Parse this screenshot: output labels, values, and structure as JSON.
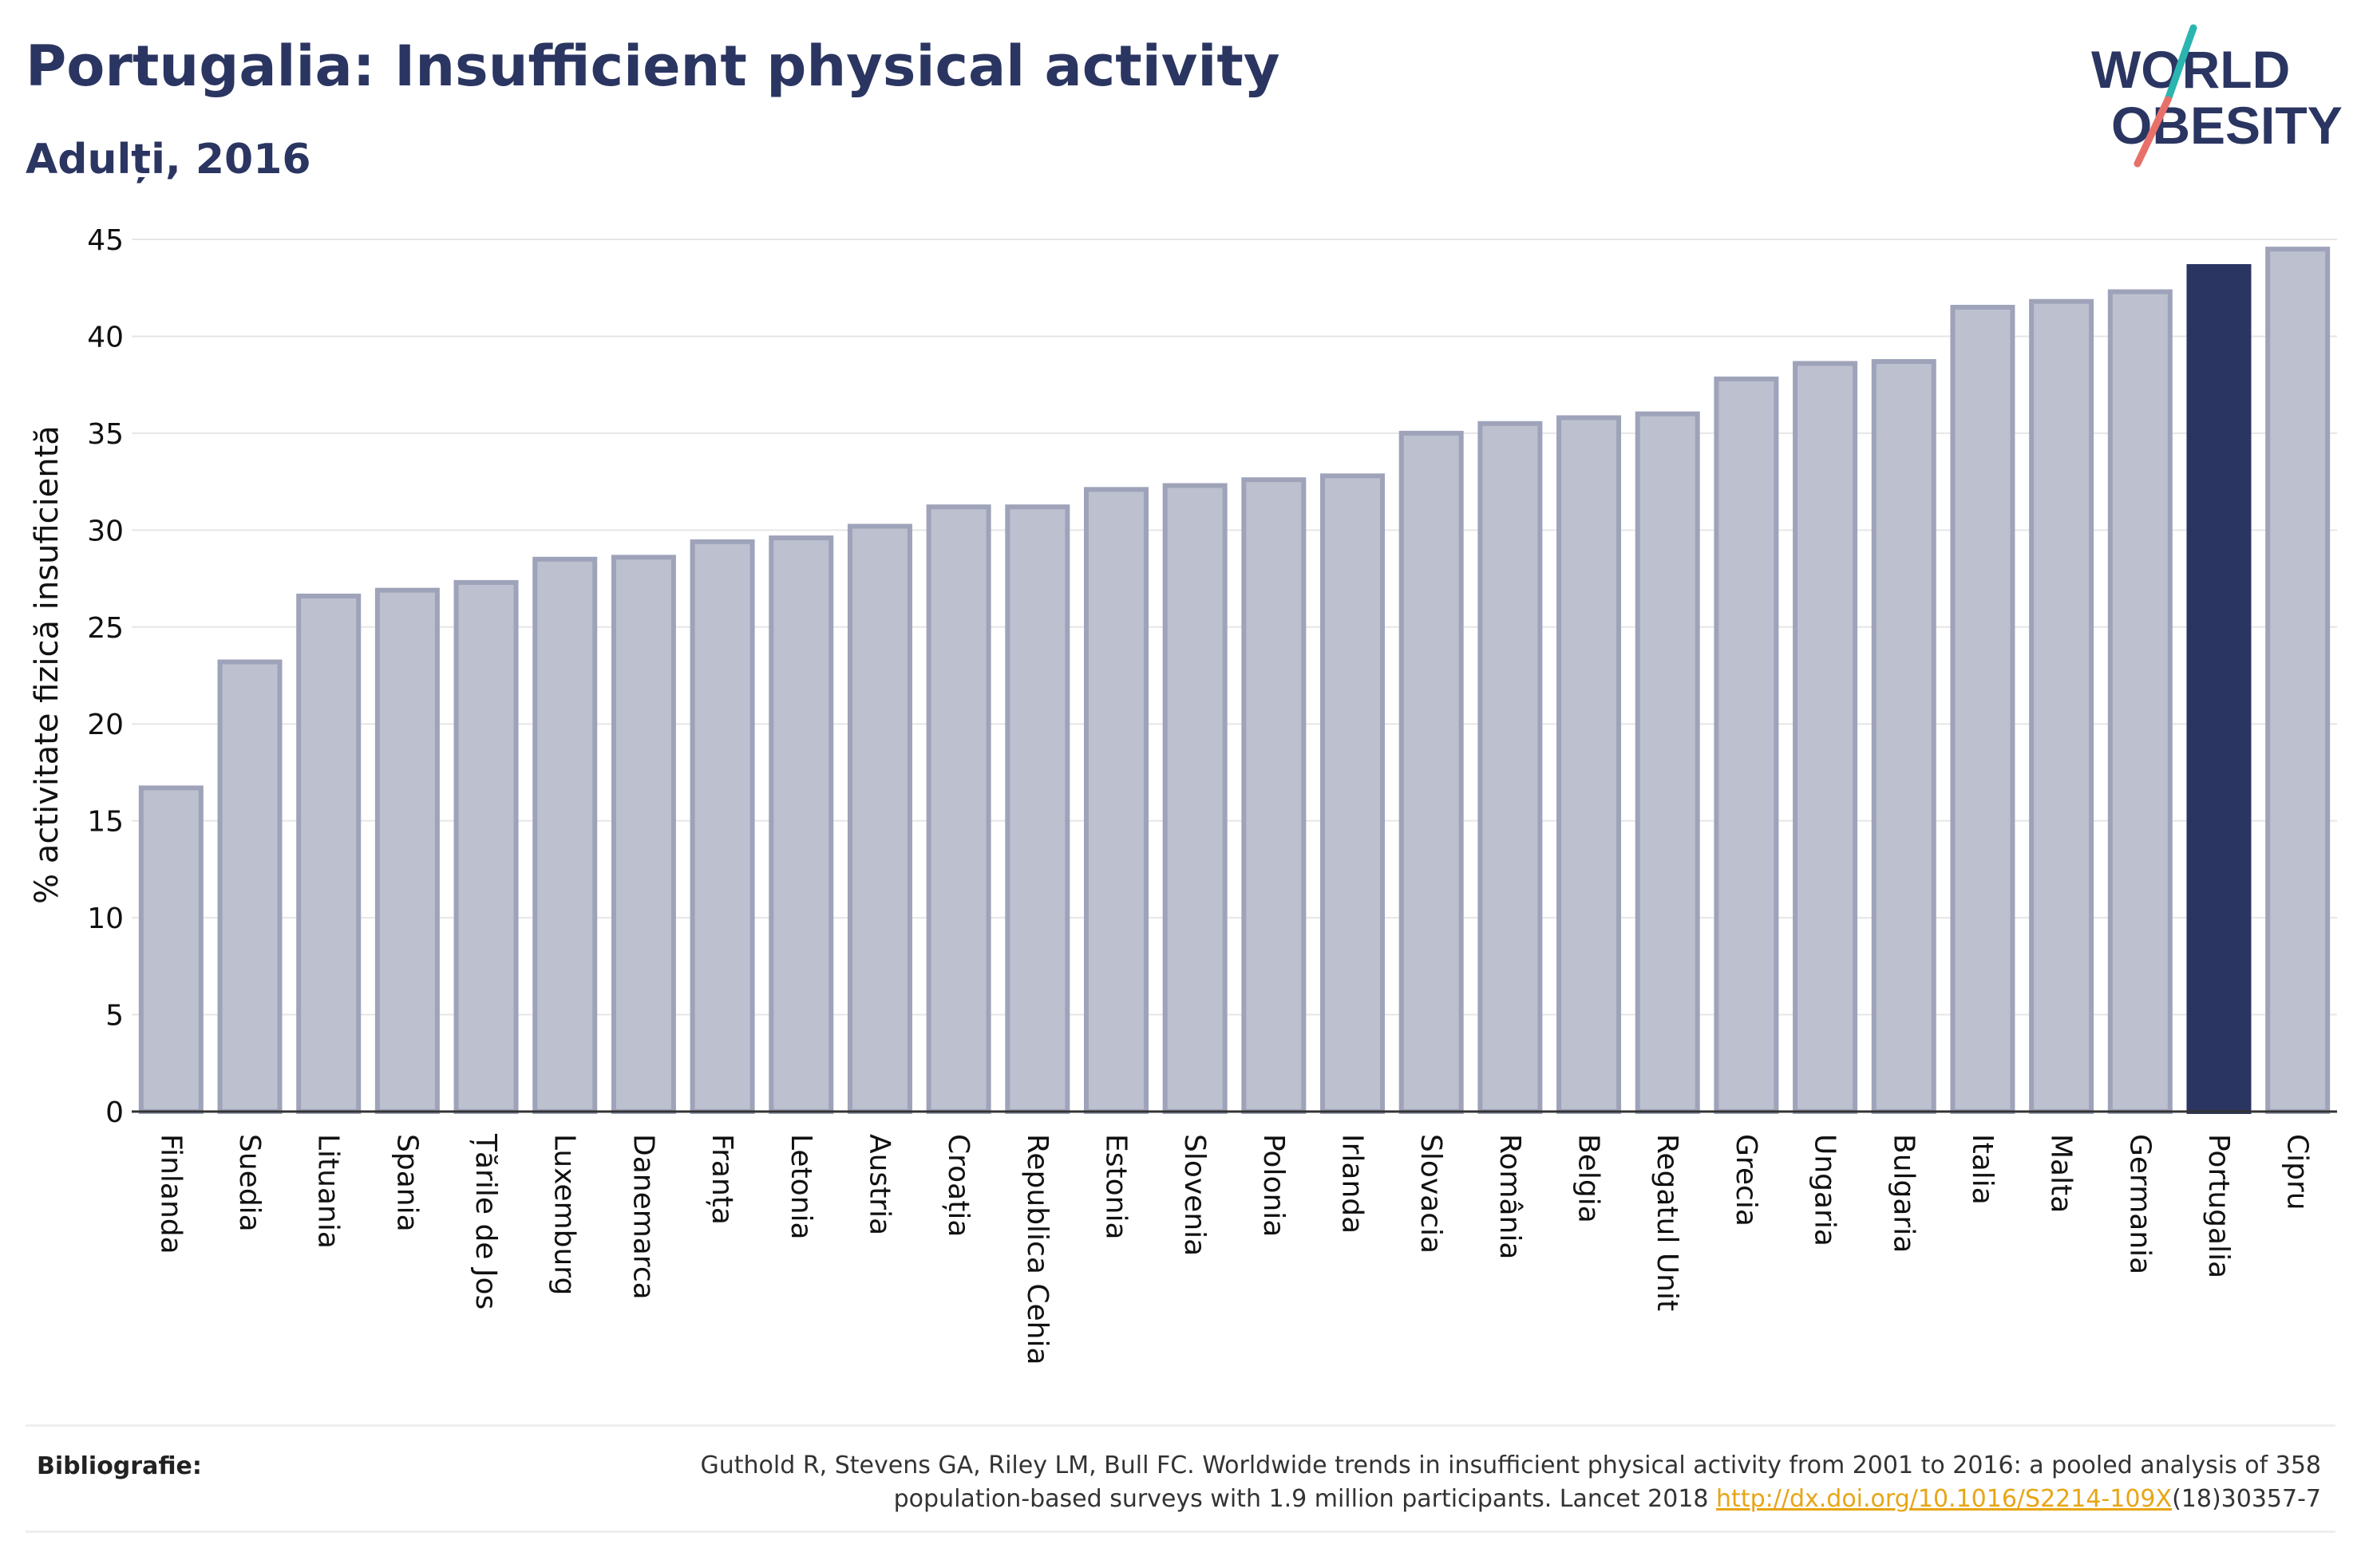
{
  "header": {
    "title": "Portugalia: Insufficient physical activity",
    "subtitle": "Adulți, 2016"
  },
  "logo": {
    "line1": "WORLD",
    "line2": "OBESITY"
  },
  "footer": {
    "bib_label": "Bibliografie:",
    "bib_line1": "Guthold R, Stevens GA, Riley LM, Bull FC. Worldwide trends in insufficient physical activity from 2001 to 2016: a pooled analysis of 358",
    "bib_line2_pre": "population-based surveys with 1.9 million participants. Lancet 2018 ",
    "bib_link": "http://dx.doi.org/10.1016/S2214-109X",
    "bib_line2_post": "(18)30357-7"
  },
  "colors": {
    "bar": "#bcc0cf",
    "bar_border": "#9ea3ba",
    "highlight": "#2b3561",
    "grid": "#e6e6e6",
    "text": "#2b3561",
    "link": "#e8a515",
    "logo_teal": "#2bb5b0",
    "logo_coral": "#e8706a"
  },
  "chart_data": {
    "type": "bar",
    "ylabel": "% activitate fizică insuficientă",
    "xlabel": "",
    "ylim": [
      0,
      45
    ],
    "yticks": [
      0,
      5,
      10,
      15,
      20,
      25,
      30,
      35,
      40,
      45
    ],
    "grid": true,
    "highlight": "Portugalia",
    "categories": [
      "Finlanda",
      "Suedia",
      "Lituania",
      "Spania",
      "Țările de Jos",
      "Luxemburg",
      "Danemarca",
      "Franța",
      "Letonia",
      "Austria",
      "Croația",
      "Republica Cehia",
      "Estonia",
      "Slovenia",
      "Polonia",
      "Irlanda",
      "Slovacia",
      "România",
      "Belgia",
      "Regatul Unit",
      "Grecia",
      "Ungaria",
      "Bulgaria",
      "Italia",
      "Malta",
      "Germania",
      "Portugalia",
      "Cipru"
    ],
    "values": [
      16.7,
      23.2,
      26.6,
      26.9,
      27.3,
      28.5,
      28.6,
      29.4,
      29.6,
      30.2,
      31.2,
      31.2,
      32.1,
      32.3,
      32.6,
      32.8,
      35.0,
      35.5,
      35.8,
      36.0,
      37.8,
      38.6,
      38.7,
      41.5,
      41.8,
      42.3,
      43.6,
      44.5
    ]
  }
}
